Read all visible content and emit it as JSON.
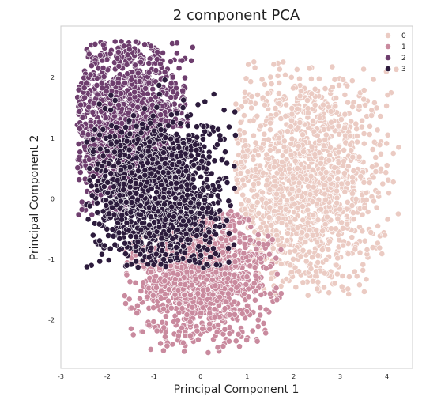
{
  "chart_data": {
    "type": "scatter",
    "title": "2 component PCA",
    "xlabel": "Principal Component 1",
    "ylabel": "Principal Component 2",
    "xlim": [
      -3.0,
      4.55
    ],
    "ylim": [
      -2.8,
      2.85
    ],
    "xticks": [
      -3,
      -2,
      -1,
      0,
      1,
      2,
      3,
      4
    ],
    "yticks": [
      -2,
      -1,
      0,
      1,
      2
    ],
    "grid": false,
    "legend": {
      "position": "top-right",
      "entries": [
        "0",
        "1",
        "2",
        "3"
      ]
    },
    "series": [
      {
        "name": "0",
        "color": "#ebcbc3",
        "region": {
          "cx": 2.15,
          "cy": 0.25,
          "sx": 0.95,
          "sy": 0.95,
          "xmin": 0.7,
          "xmax": 4.25,
          "ymin": -1.6,
          "ymax": 2.3
        },
        "count": 1400
      },
      {
        "name": "1",
        "color": "#c98a9e",
        "region": {
          "cx": 0.05,
          "cy": -1.25,
          "sx": 0.75,
          "sy": 0.55,
          "xmin": -1.65,
          "xmax": 1.75,
          "ymin": -2.55,
          "ymax": -0.2
        },
        "count": 1300
      },
      {
        "name": "2",
        "color": "#6e3e6e",
        "region": {
          "cx": -1.6,
          "cy": 1.2,
          "sx": 0.7,
          "sy": 0.8,
          "xmin": -2.65,
          "xmax": -0.15,
          "ymin": -0.3,
          "ymax": 2.6
        },
        "count": 1300
      },
      {
        "name": "3",
        "color": "#2c1b3c",
        "region": {
          "cx": -0.9,
          "cy": 0.05,
          "sx": 0.7,
          "sy": 0.65,
          "xmin": -2.45,
          "xmax": 0.8,
          "ymin": -1.15,
          "ymax": 2.35
        },
        "count": 1400
      }
    ]
  }
}
